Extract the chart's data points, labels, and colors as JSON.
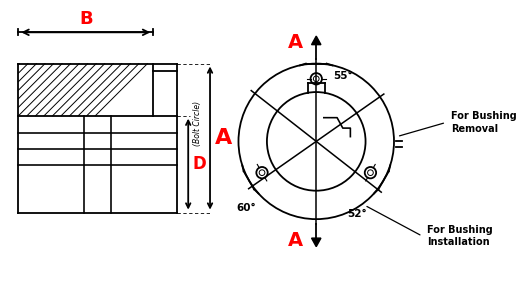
{
  "bg_color": "#ffffff",
  "line_color": "#000000",
  "red_color": "#ff0000",
  "orange_color": "#cc6600",
  "label_A": "A",
  "label_B": "B",
  "label_D": "D",
  "label_bolt_circle": "(Bolt Circle)",
  "angle_55": "55°",
  "angle_60": "60°",
  "angle_52": "52°",
  "text_removal": "For Bushing\nRemoval",
  "text_installation": "For Bushing\nInstallation",
  "fig_width": 5.26,
  "fig_height": 2.83,
  "dpi": 100
}
